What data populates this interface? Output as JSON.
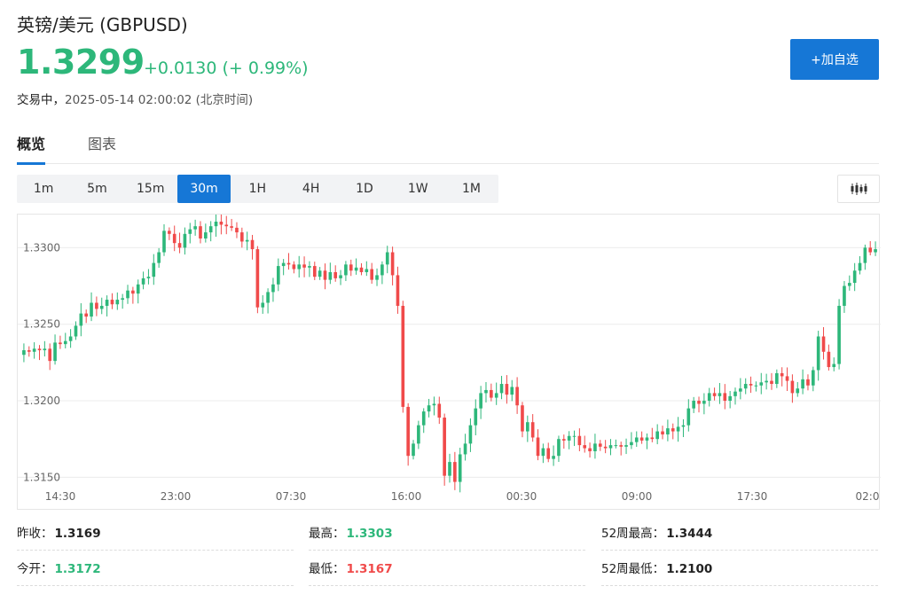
{
  "header": {
    "title": "英镑/美元 (GBPUSD)",
    "price": "1.3299",
    "change": "+0.0130 (+ 0.99%)",
    "status_label": "交易中，",
    "timestamp": "2025-05-14 02:00:02 (北京时间)",
    "add_button_label": "+加自选"
  },
  "tabs": [
    {
      "label": "概览",
      "active": true
    },
    {
      "label": "图表",
      "active": false
    }
  ],
  "periods": [
    {
      "label": "1m",
      "active": false
    },
    {
      "label": "5m",
      "active": false
    },
    {
      "label": "15m",
      "active": false
    },
    {
      "label": "30m",
      "active": true
    },
    {
      "label": "1H",
      "active": false
    },
    {
      "label": "4H",
      "active": false
    },
    {
      "label": "1D",
      "active": false
    },
    {
      "label": "1W",
      "active": false
    },
    {
      "label": "1M",
      "active": false
    }
  ],
  "chart_type_icon": "candlestick-icon",
  "colors": {
    "up": "#2db77a",
    "down": "#f04a4a",
    "accent": "#1677d6"
  },
  "chart_data": {
    "type": "candlestick",
    "y_ticks": [
      "1.3300",
      "1.3250",
      "1.3200",
      "1.3150"
    ],
    "ylim": [
      1.3145,
      1.3317
    ],
    "x_ticks": [
      "14:30",
      "23:00",
      "07:30",
      "16:00",
      "00:30",
      "09:00",
      "17:30",
      "02:0"
    ],
    "grid": true,
    "series": [
      {
        "close_points": [
          1.3233,
          1.3232,
          1.3234,
          1.3233,
          1.3234,
          1.3226,
          1.3238,
          1.3237,
          1.3239,
          1.3242,
          1.3249,
          1.3257,
          1.3255,
          1.3264,
          1.326,
          1.3262,
          1.3266,
          1.3263,
          1.3266,
          1.3267,
          1.3272,
          1.327,
          1.3276,
          1.328,
          1.3281,
          1.329,
          1.3297,
          1.3311,
          1.3309,
          1.3303,
          1.33,
          1.3309,
          1.3312,
          1.3314,
          1.3306,
          1.331,
          1.3314,
          1.3317,
          1.3315,
          1.3314,
          1.3313,
          1.331,
          1.3304,
          1.3305,
          1.3299,
          1.3261,
          1.3264,
          1.3271,
          1.3276,
          1.3288,
          1.329,
          1.3289,
          1.3286,
          1.3289,
          1.3287,
          1.3288,
          1.3281,
          1.3285,
          1.3279,
          1.3284,
          1.328,
          1.3282,
          1.3289,
          1.3285,
          1.3287,
          1.3284,
          1.3286,
          1.3279,
          1.3282,
          1.3289,
          1.3297,
          1.3282,
          1.3262,
          1.3196,
          1.3164,
          1.3172,
          1.3184,
          1.3193,
          1.3197,
          1.3198,
          1.3189,
          1.3151,
          1.316,
          1.3147,
          1.3165,
          1.3172,
          1.3184,
          1.3195,
          1.3205,
          1.3207,
          1.3202,
          1.3205,
          1.3211,
          1.3204,
          1.3209,
          1.3197,
          1.318,
          1.3186,
          1.3176,
          1.3164,
          1.3169,
          1.3162,
          1.3164,
          1.3175,
          1.3174,
          1.3177,
          1.3177,
          1.3171,
          1.3169,
          1.3167,
          1.3172,
          1.317,
          1.3169,
          1.3171,
          1.3171,
          1.317,
          1.3171,
          1.3173,
          1.3176,
          1.3174,
          1.3176,
          1.3175,
          1.318,
          1.3178,
          1.3182,
          1.318,
          1.3183,
          1.3184,
          1.3195,
          1.32,
          1.3198,
          1.32,
          1.3205,
          1.3203,
          1.3205,
          1.32,
          1.3203,
          1.3206,
          1.3208,
          1.3211,
          1.321,
          1.321,
          1.3212,
          1.3213,
          1.3211,
          1.3218,
          1.3216,
          1.3213,
          1.3205,
          1.3208,
          1.3214,
          1.321,
          1.322,
          1.3242,
          1.3232,
          1.3222,
          1.3224,
          1.3262,
          1.3275,
          1.3277,
          1.3285,
          1.329,
          1.33,
          1.3297,
          1.3299
        ]
      }
    ]
  },
  "stats": [
    {
      "label": "昨收：",
      "value": "1.3169",
      "color": "dark"
    },
    {
      "label": "最高：",
      "value": "1.3303",
      "color": "green"
    },
    {
      "label": "52周最高：",
      "value": "1.3444",
      "color": "dark"
    },
    {
      "label": "今开：",
      "value": "1.3172",
      "color": "green"
    },
    {
      "label": "最低：",
      "value": "1.3167",
      "color": "red"
    },
    {
      "label": "52周最低：",
      "value": "1.2100",
      "color": "dark"
    }
  ]
}
